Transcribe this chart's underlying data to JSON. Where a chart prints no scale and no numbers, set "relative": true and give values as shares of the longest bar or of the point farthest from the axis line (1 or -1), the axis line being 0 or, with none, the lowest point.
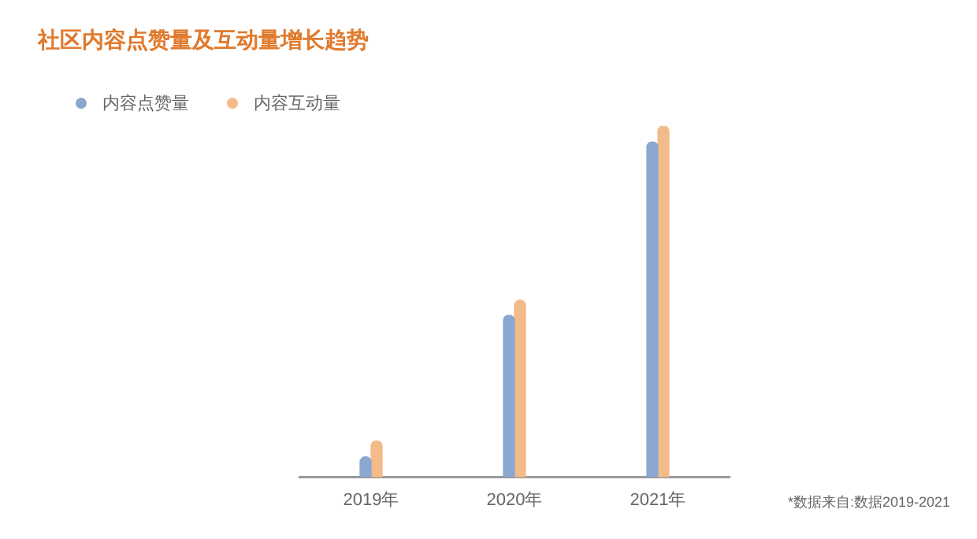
{
  "chart_data": {
    "type": "bar",
    "title": "社区内容点赞量及互动量增长趋势",
    "categories": [
      "2019年",
      "2020年",
      "2021年"
    ],
    "relative": true,
    "legend": "top left",
    "grid": false,
    "series": [
      {
        "name": "内容点赞量",
        "color": "#8aa8cf",
        "values": [
          0.058,
          0.461,
          0.955
        ]
      },
      {
        "name": "内容互动量",
        "color": "#f4bb8a",
        "values": [
          0.103,
          0.504,
          1
        ]
      }
    ],
    "annotations": [
      "*数据来自:数据2019-2021"
    ]
  }
}
